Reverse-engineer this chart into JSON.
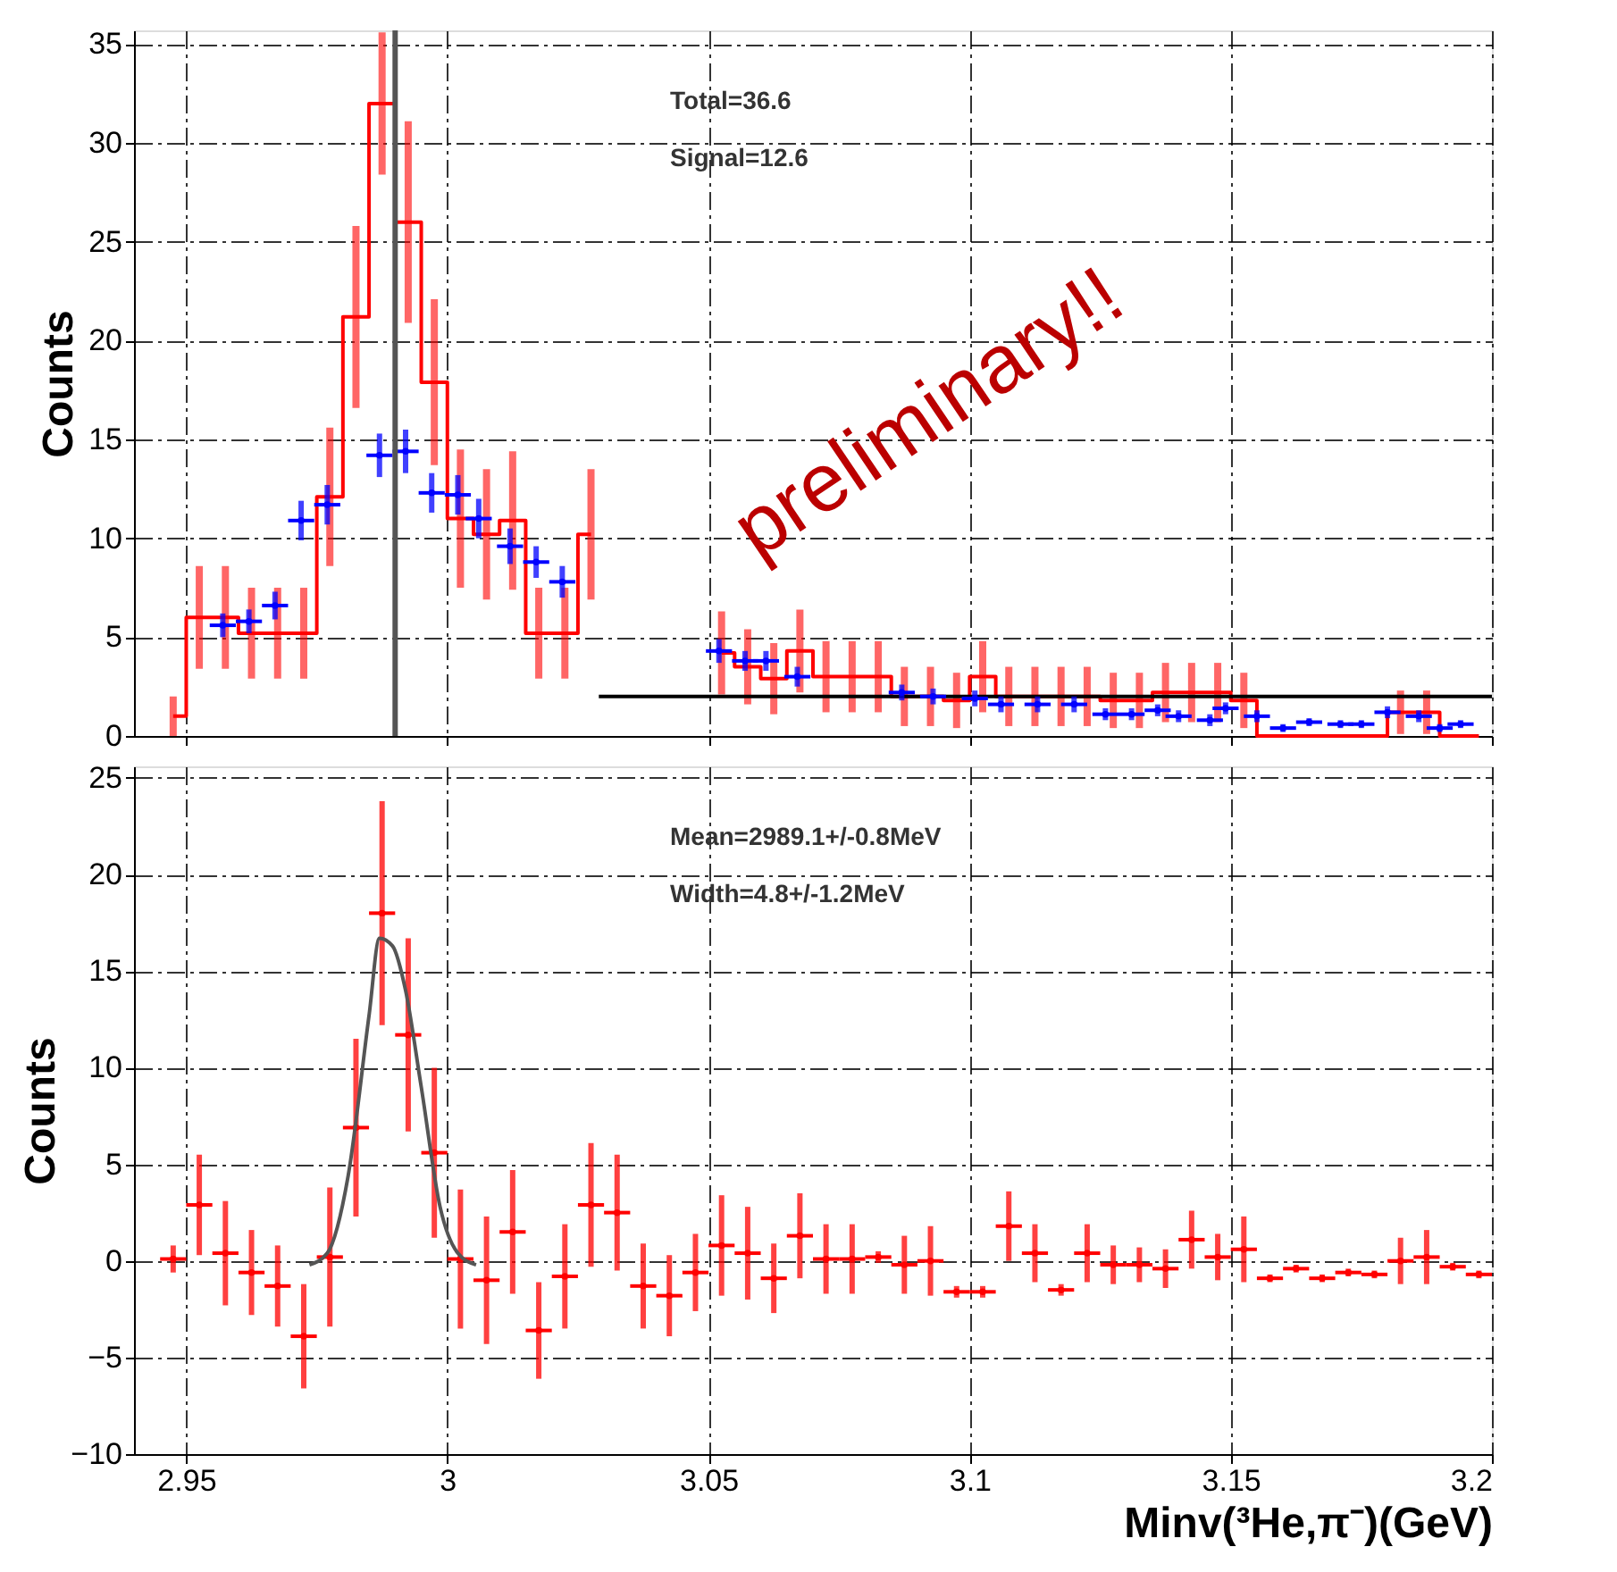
{
  "chart_data": [
    {
      "type": "step",
      "ylabel": "Counts",
      "xlim": [
        2.94,
        3.2
      ],
      "ylim": [
        0,
        35.7
      ],
      "xticks": [
        2.95,
        3,
        3.05,
        3.1,
        3.15,
        3.2
      ],
      "yticks": [
        0,
        5,
        10,
        15,
        20,
        25,
        30,
        35
      ],
      "tick_labels": "y",
      "grid": true,
      "annotations": [
        "Total=36.6",
        "Signal=12.6",
        "preliminary!!"
      ],
      "ref_lines": [
        {
          "axis": "x",
          "value": 2.99,
          "color": "#555555"
        }
      ],
      "series": [
        {
          "color": "#ff0000",
          "x": [
            2.9475,
            2.9525,
            2.9575,
            2.9625,
            2.9675,
            2.9725,
            2.9775,
            2.9825,
            2.9875,
            2.9925,
            2.9975,
            3.0025,
            3.0075,
            3.0125,
            3.0175,
            3.0225,
            3.0275,
            3.0325,
            3.0375,
            3.0425,
            3.0475,
            3.0525,
            3.0575,
            3.0625,
            3.0675,
            3.0725,
            3.0775,
            3.0825,
            3.0875,
            3.0925,
            3.0975,
            3.1025,
            3.1075,
            3.1125,
            3.1175,
            3.1225,
            3.1275,
            3.1325,
            3.1375,
            3.1425,
            3.1475,
            3.1525,
            3.1575,
            3.1625,
            3.1675,
            3.1725,
            3.1775,
            3.1825,
            3.1875,
            3.1925,
            3.1975
          ],
          "values": [
            1,
            6,
            6,
            5.2,
            5.2,
            5.2,
            12.1,
            21.2,
            32,
            26,
            17.9,
            11,
            10.2,
            10.9,
            5.2,
            5.2,
            10.2,
            null,
            null,
            null,
            null,
            4.2,
            3.5,
            2.9,
            4.3,
            3,
            3,
            3,
            2,
            2,
            1.8,
            3,
            2,
            2,
            2,
            2,
            1.8,
            1.8,
            2.2,
            2.2,
            2.2,
            1.8,
            0,
            0,
            0,
            0,
            0,
            1.2,
            1.2,
            0,
            0
          ],
          "errors": [
            1,
            2.6,
            2.6,
            2.3,
            2.3,
            2.3,
            3.5,
            4.6,
            3.6,
            5.1,
            4.2,
            3.5,
            3.3,
            3.5,
            2.3,
            2.3,
            3.3,
            null,
            null,
            null,
            null,
            2.1,
            1.9,
            1.8,
            2.1,
            1.8,
            1.8,
            1.8,
            1.5,
            1.5,
            1.4,
            1.8,
            1.5,
            1.5,
            1.5,
            1.5,
            1.4,
            1.4,
            1.5,
            1.5,
            1.5,
            1.4,
            null,
            null,
            null,
            null,
            null,
            1.1,
            1.1,
            null,
            null
          ]
        },
        {
          "type": "line",
          "color": "#000000",
          "x": [
            3.029,
            3.2
          ],
          "values": [
            2,
            2
          ]
        },
        {
          "type": "scatter",
          "marker": "circle",
          "color": "#0000ff",
          "x": [
            2.957,
            2.962,
            2.967,
            2.972,
            2.977,
            2.987,
            2.992,
            2.997,
            3.002,
            3.006,
            3.012,
            3.017,
            3.022,
            3.052,
            3.057,
            3.061,
            3.067,
            3.087,
            3.093,
            3.101,
            3.106,
            3.113,
            3.12,
            3.126,
            3.131,
            3.136,
            3.14,
            3.146,
            3.149,
            3.155,
            3.16,
            3.165,
            3.171,
            3.175,
            3.18,
            3.186,
            3.19,
            3.194
          ],
          "values": [
            5.6,
            5.8,
            6.6,
            10.9,
            11.7,
            14.2,
            14.4,
            12.3,
            12.2,
            11,
            9.6,
            8.8,
            7.8,
            4.3,
            3.8,
            3.8,
            3,
            2.2,
            2,
            1.9,
            1.6,
            1.6,
            1.6,
            1.1,
            1.1,
            1.3,
            1,
            0.8,
            1.4,
            1,
            0.4,
            0.7,
            0.6,
            0.6,
            1.2,
            1,
            0.4,
            0.6
          ],
          "errors": [
            0.6,
            0.6,
            0.7,
            1,
            1,
            1.1,
            1.1,
            1,
            1,
            1,
            0.9,
            0.8,
            0.8,
            0.6,
            0.5,
            0.5,
            0.5,
            0.4,
            0.4,
            0.4,
            0.4,
            0.4,
            0.4,
            0.3,
            0.3,
            0.3,
            0.3,
            0.3,
            0.3,
            0.3,
            0.2,
            0.2,
            0.2,
            0.2,
            0.3,
            0.3,
            0.2,
            0.2
          ],
          "xerrors": [
            0.0025,
            0.0025,
            0.0025,
            0.0025,
            0.0025,
            0.0025,
            0.0025,
            0.0025,
            0.0025,
            0.0025,
            0.0025,
            0.0025,
            0.0025,
            0.0025,
            0.0025,
            0.0025,
            0.0025,
            0.0025,
            0.0025,
            0.0025,
            0.0025,
            0.0025,
            0.0025,
            0.0025,
            0.0025,
            0.0025,
            0.0025,
            0.0025,
            0.0025,
            0.0025,
            0.0025,
            0.0025,
            0.0025,
            0.0025,
            0.0025,
            0.0025,
            0.0025,
            0.0025
          ]
        }
      ]
    },
    {
      "type": "scatter",
      "xlabel": "Minv(³He,π⁻)(GeV)",
      "ylabel": "Counts",
      "xlim": [
        2.94,
        3.2
      ],
      "ylim": [
        -10,
        25.6
      ],
      "xticks": [
        2.95,
        3,
        3.05,
        3.1,
        3.15,
        3.2
      ],
      "yticks": [
        -10,
        -5,
        0,
        5,
        10,
        15,
        20,
        25
      ],
      "grid": true,
      "annotations": [
        "Mean=2989.1+/-0.8MeV",
        "Width=4.8+/-1.2MeV"
      ],
      "series": [
        {
          "marker": "circle",
          "color": "#ff0000",
          "x": [
            2.9475,
            2.9525,
            2.9575,
            2.9625,
            2.9675,
            2.9725,
            2.9775,
            2.9825,
            2.9875,
            2.9925,
            2.9975,
            3.0025,
            3.0075,
            3.0125,
            3.0175,
            3.0225,
            3.0275,
            3.0325,
            3.0375,
            3.0425,
            3.0475,
            3.0525,
            3.0575,
            3.0625,
            3.0675,
            3.0725,
            3.0775,
            3.0825,
            3.0875,
            3.0925,
            3.0975,
            3.1025,
            3.1075,
            3.1125,
            3.1175,
            3.1225,
            3.1275,
            3.1325,
            3.1375,
            3.1425,
            3.1475,
            3.1525,
            3.1575,
            3.1625,
            3.1675,
            3.1725,
            3.1775,
            3.1825,
            3.1875,
            3.1925,
            3.1975
          ],
          "values": [
            0.1,
            2.9,
            0.4,
            -0.6,
            -1.3,
            -3.9,
            0.2,
            6.9,
            18,
            11.7,
            5.6,
            0.1,
            -1,
            1.5,
            -3.6,
            -0.8,
            2.9,
            2.5,
            -1.3,
            -1.8,
            -0.6,
            0.8,
            0.4,
            -0.9,
            1.3,
            0.1,
            0.1,
            0.2,
            -0.2,
            0,
            -1.6,
            -1.6,
            1.8,
            0.4,
            -1.5,
            0.4,
            -0.2,
            -0.2,
            -0.4,
            1.1,
            0.2,
            0.6,
            -0.9,
            -0.4,
            -0.9,
            -0.6,
            -0.7,
            0,
            0.2,
            -0.3,
            -0.7
          ],
          "errors": [
            0.7,
            2.6,
            2.7,
            2.2,
            2.1,
            2.7,
            3.6,
            4.6,
            5.8,
            5,
            4.4,
            3.6,
            3.3,
            3.2,
            2.5,
            2.7,
            3.2,
            3,
            2.2,
            2.1,
            2,
            2.6,
            2.4,
            1.8,
            2.2,
            1.8,
            1.8,
            0.3,
            1.5,
            1.8,
            0.3,
            0.3,
            1.8,
            1.5,
            0.3,
            1.5,
            1,
            0.9,
            1,
            1.5,
            1.2,
            1.7,
            0.2,
            0.2,
            0.2,
            0.2,
            0.2,
            1.2,
            1.4,
            0.2,
            0.2
          ],
          "xerrors": [
            0.0025,
            0.0025,
            0.0025,
            0.0025,
            0.0025,
            0.0025,
            0.0025,
            0.0025,
            0.0025,
            0.0025,
            0.0025,
            0.0025,
            0.0025,
            0.0025,
            0.0025,
            0.0025,
            0.0025,
            0.0025,
            0.0025,
            0.0025,
            0.0025,
            0.0025,
            0.0025,
            0.0025,
            0.0025,
            0.0025,
            0.0025,
            0.0025,
            0.0025,
            0.0025,
            0.0025,
            0.0025,
            0.0025,
            0.0025,
            0.0025,
            0.0025,
            0.0025,
            0.0025,
            0.0025,
            0.0025,
            0.0025,
            0.0025,
            0.0025,
            0.0025,
            0.0025,
            0.0025,
            0.0025,
            0.0025,
            0.0025,
            0.0025,
            0.0025
          ]
        },
        {
          "type": "line",
          "color": "#555555",
          "x": [
            2.9736,
            2.977,
            2.981,
            2.985,
            2.987,
            2.9895,
            2.992,
            2.995,
            2.9986,
            3.002,
            3.0055
          ],
          "values": [
            -0.2,
            0.4,
            4.4,
            12.7,
            16.7,
            16.3,
            14,
            9,
            2.8,
            0.4,
            -0.2
          ]
        }
      ]
    }
  ]
}
